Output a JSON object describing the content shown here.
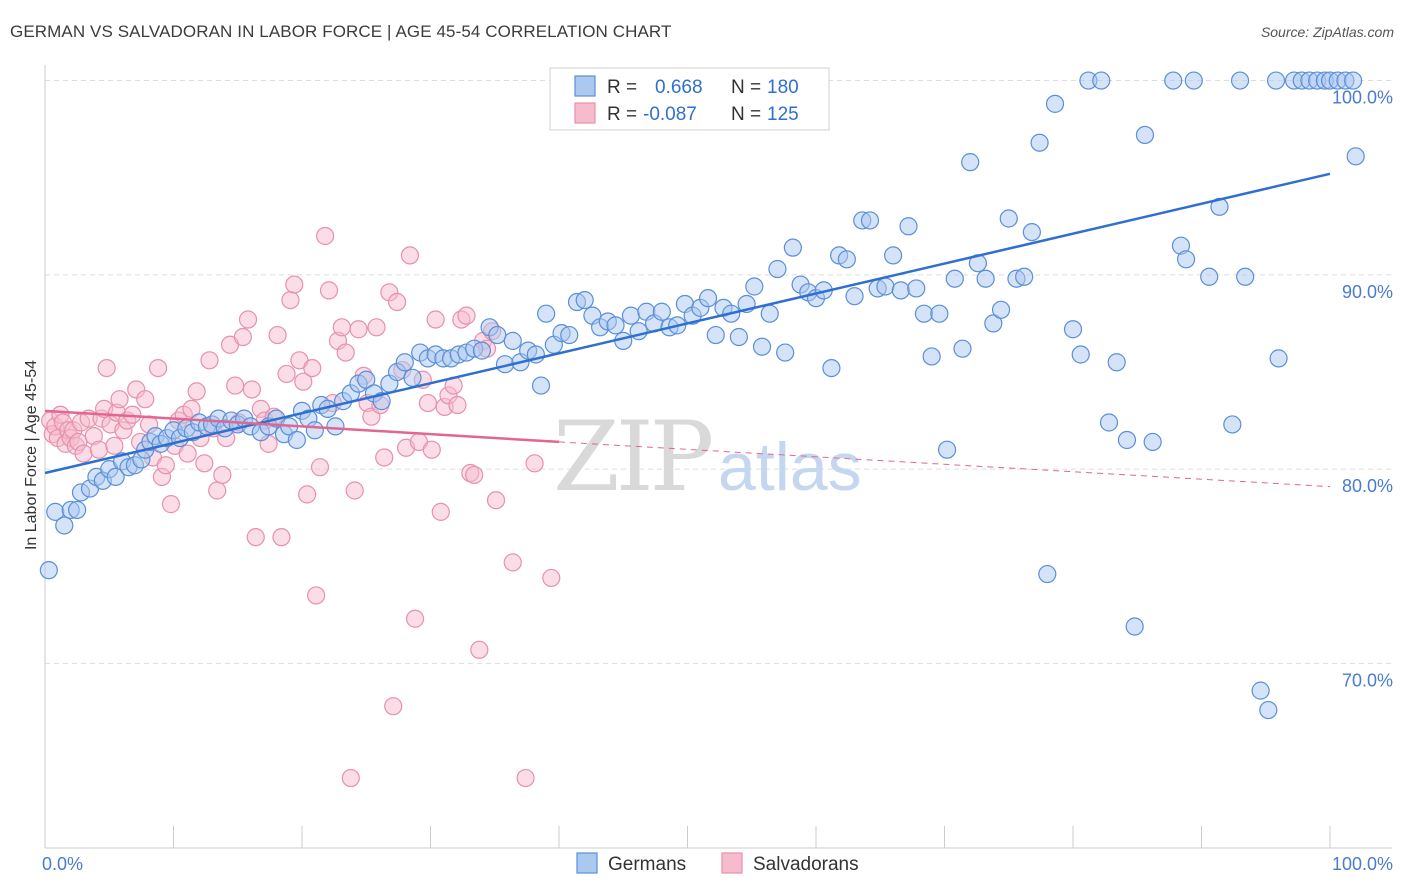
{
  "title": "GERMAN VS SALVADORAN IN LABOR FORCE | AGE 45-54 CORRELATION CHART",
  "source": "Source: ZipAtlas.com",
  "watermark": {
    "zip": "ZIP",
    "atlas": "atlas"
  },
  "legend": {
    "r_label": "R =",
    "n_label": "N =",
    "series": [
      {
        "r": "0.668",
        "n": "180"
      },
      {
        "r": "-0.087",
        "n": "125"
      }
    ]
  },
  "bottom_legend": [
    "Germans",
    "Salvadorans"
  ],
  "chart_data": {
    "type": "scatter",
    "ylabel": "In Labor Force | Age 45-54",
    "x_tick_labels": [
      "0.0%",
      "100.0%"
    ],
    "y_tick_labels": [
      "70.0%",
      "80.0%",
      "90.0%",
      "100.0%"
    ],
    "x_range": [
      0,
      100
    ],
    "y_range": [
      60.5,
      100.8
    ],
    "y_gridlines": [
      70,
      80,
      90,
      100
    ],
    "grid": true,
    "legend_position": "top-center",
    "colors": {
      "germans_fill": "#aac8f0",
      "germans_stroke": "#5b8fd8",
      "germans_line": "#2f6fd0",
      "salvadorans_fill": "#f6bccd",
      "salvadorans_stroke": "#e890ac",
      "salvadorans_line": "#e26690"
    },
    "series": [
      {
        "name": "Germans",
        "trend": {
          "x": [
            0,
            100
          ],
          "y": [
            79.8,
            95.2
          ],
          "dashed_from": null
        },
        "points": [
          [
            0.3,
            74.8
          ],
          [
            0.8,
            77.8
          ],
          [
            1.5,
            77.1
          ],
          [
            2,
            77.9
          ],
          [
            2.5,
            77.9
          ],
          [
            2.8,
            78.8
          ],
          [
            3.5,
            79
          ],
          [
            4,
            79.6
          ],
          [
            4.5,
            79.4
          ],
          [
            5,
            80
          ],
          [
            5.5,
            79.6
          ],
          [
            6,
            80.4
          ],
          [
            6.5,
            80.1
          ],
          [
            7,
            80.2
          ],
          [
            7.5,
            80.5
          ],
          [
            7.8,
            81
          ],
          [
            8.2,
            81.4
          ],
          [
            8.6,
            81.7
          ],
          [
            9,
            81.3
          ],
          [
            9.5,
            81.6
          ],
          [
            10,
            82
          ],
          [
            10.5,
            81.6
          ],
          [
            11,
            82.1
          ],
          [
            11.5,
            81.9
          ],
          [
            12,
            82.4
          ],
          [
            12.6,
            82.2
          ],
          [
            13,
            82.3
          ],
          [
            13.5,
            82.6
          ],
          [
            14,
            82.1
          ],
          [
            14.5,
            82.5
          ],
          [
            15,
            82.3
          ],
          [
            15.5,
            82.6
          ],
          [
            16,
            82.2
          ],
          [
            16.8,
            81.9
          ],
          [
            17.4,
            82.2
          ],
          [
            18,
            82.6
          ],
          [
            18.6,
            81.8
          ],
          [
            19,
            82.2
          ],
          [
            19.6,
            81.5
          ],
          [
            20,
            83
          ],
          [
            20.5,
            82.6
          ],
          [
            21,
            82
          ],
          [
            21.5,
            83.3
          ],
          [
            22,
            83.1
          ],
          [
            22.6,
            82.2
          ],
          [
            23.2,
            83.5
          ],
          [
            23.8,
            83.9
          ],
          [
            24.4,
            84.4
          ],
          [
            25,
            84.6
          ],
          [
            25.6,
            83.9
          ],
          [
            26.2,
            83.5
          ],
          [
            26.8,
            84.4
          ],
          [
            27.4,
            85
          ],
          [
            28,
            85.5
          ],
          [
            28.6,
            84.7
          ],
          [
            29.2,
            86
          ],
          [
            29.8,
            85.7
          ],
          [
            30.4,
            85.9
          ],
          [
            31,
            85.7
          ],
          [
            31.6,
            85.7
          ],
          [
            32.2,
            85.9
          ],
          [
            32.8,
            86
          ],
          [
            33.4,
            86.2
          ],
          [
            34,
            86.1
          ],
          [
            34.6,
            87.3
          ],
          [
            35.2,
            86.9
          ],
          [
            35.8,
            85.4
          ],
          [
            36.4,
            86.6
          ],
          [
            37,
            85.5
          ],
          [
            37.6,
            86.1
          ],
          [
            38.2,
            85.9
          ],
          [
            38.6,
            84.3
          ],
          [
            39,
            88
          ],
          [
            39.6,
            86.4
          ],
          [
            40.2,
            87
          ],
          [
            40.8,
            86.9
          ],
          [
            41.4,
            88.6
          ],
          [
            42,
            88.7
          ],
          [
            42.6,
            87.9
          ],
          [
            43.2,
            87.3
          ],
          [
            43.8,
            87.6
          ],
          [
            44.4,
            87.4
          ],
          [
            45,
            86.6
          ],
          [
            45.6,
            87.9
          ],
          [
            46.2,
            87.1
          ],
          [
            46.8,
            88.1
          ],
          [
            47.4,
            87.5
          ],
          [
            48,
            88.1
          ],
          [
            48.6,
            87.3
          ],
          [
            49.2,
            87.4
          ],
          [
            49.8,
            88.5
          ],
          [
            50.4,
            87.9
          ],
          [
            51,
            88.3
          ],
          [
            51.6,
            88.8
          ],
          [
            52.2,
            86.9
          ],
          [
            52.8,
            88.3
          ],
          [
            53.4,
            88
          ],
          [
            54,
            86.8
          ],
          [
            54.6,
            88.5
          ],
          [
            55.2,
            89.4
          ],
          [
            55.8,
            86.3
          ],
          [
            56.4,
            88
          ],
          [
            57,
            90.3
          ],
          [
            57.6,
            86
          ],
          [
            58.2,
            91.4
          ],
          [
            58.8,
            89.5
          ],
          [
            59.4,
            89.1
          ],
          [
            60,
            88.8
          ],
          [
            60.6,
            89.2
          ],
          [
            61.2,
            85.2
          ],
          [
            61.8,
            91
          ],
          [
            62.4,
            90.8
          ],
          [
            63,
            88.9
          ],
          [
            63.6,
            92.8
          ],
          [
            64.2,
            92.8
          ],
          [
            64.8,
            89.3
          ],
          [
            65.4,
            89.4
          ],
          [
            66,
            91
          ],
          [
            66.6,
            89.2
          ],
          [
            67.2,
            92.5
          ],
          [
            67.8,
            89.3
          ],
          [
            68.4,
            88
          ],
          [
            69,
            85.8
          ],
          [
            69.6,
            88
          ],
          [
            70.2,
            81
          ],
          [
            70.8,
            89.8
          ],
          [
            71.4,
            86.2
          ],
          [
            72,
            95.8
          ],
          [
            72.6,
            90.6
          ],
          [
            73.2,
            89.8
          ],
          [
            73.8,
            87.5
          ],
          [
            74.4,
            88.2
          ],
          [
            75,
            92.9
          ],
          [
            75.6,
            89.8
          ],
          [
            76.2,
            89.9
          ],
          [
            76.8,
            92.2
          ],
          [
            77.4,
            96.8
          ],
          [
            78,
            74.6
          ],
          [
            78.6,
            98.8
          ],
          [
            80,
            87.2
          ],
          [
            80.6,
            85.9
          ],
          [
            81.2,
            100
          ],
          [
            82.2,
            100
          ],
          [
            82.8,
            82.4
          ],
          [
            83.4,
            85.5
          ],
          [
            84.2,
            81.5
          ],
          [
            84.8,
            71.9
          ],
          [
            85.6,
            97.2
          ],
          [
            86.2,
            81.4
          ],
          [
            87.8,
            100
          ],
          [
            88.4,
            91.5
          ],
          [
            88.8,
            90.8
          ],
          [
            89.4,
            100
          ],
          [
            90.6,
            89.9
          ],
          [
            91.4,
            93.5
          ],
          [
            92.4,
            82.3
          ],
          [
            93,
            100
          ],
          [
            93.4,
            89.9
          ],
          [
            94.6,
            68.6
          ],
          [
            95.2,
            67.6
          ],
          [
            95.8,
            100
          ],
          [
            96,
            85.7
          ],
          [
            97.2,
            100
          ],
          [
            97.8,
            100
          ],
          [
            98.4,
            100
          ],
          [
            99,
            100
          ],
          [
            99.6,
            100
          ],
          [
            100,
            100
          ],
          [
            100.6,
            100
          ],
          [
            101.2,
            100
          ],
          [
            101.8,
            100
          ],
          [
            102,
            96.1
          ]
        ]
      },
      {
        "name": "Salvadorans",
        "trend": {
          "x": [
            0,
            40,
            100
          ],
          "y": [
            83,
            81.4,
            79.1
          ],
          "dashed_from": 40
        },
        "points": [
          [
            0.4,
            82.5
          ],
          [
            0.6,
            81.8
          ],
          [
            0.8,
            82.2
          ],
          [
            1,
            81.6
          ],
          [
            1.2,
            82.8
          ],
          [
            1.4,
            82.4
          ],
          [
            1.6,
            81.3
          ],
          [
            1.8,
            82
          ],
          [
            2,
            81.6
          ],
          [
            2.2,
            82
          ],
          [
            2.4,
            81.2
          ],
          [
            2.6,
            81.4
          ],
          [
            2.8,
            82.4
          ],
          [
            3,
            80.8
          ],
          [
            3.4,
            82.6
          ],
          [
            3.8,
            81.7
          ],
          [
            4.2,
            81
          ],
          [
            4.4,
            82.6
          ],
          [
            4.6,
            83.1
          ],
          [
            4.8,
            85.2
          ],
          [
            5.1,
            82.3
          ],
          [
            5.4,
            81.2
          ],
          [
            5.6,
            82.9
          ],
          [
            5.8,
            83.6
          ],
          [
            6.1,
            82
          ],
          [
            6.4,
            82.5
          ],
          [
            6.8,
            82.8
          ],
          [
            7.1,
            84.1
          ],
          [
            7.4,
            81.4
          ],
          [
            7.8,
            83.6
          ],
          [
            8.1,
            82.3
          ],
          [
            8.4,
            80.6
          ],
          [
            8.8,
            85.2
          ],
          [
            9.1,
            79.6
          ],
          [
            9.4,
            80.2
          ],
          [
            9.8,
            78.2
          ],
          [
            10.1,
            81.2
          ],
          [
            10.4,
            82.5
          ],
          [
            10.8,
            82.8
          ],
          [
            11.1,
            80.8
          ],
          [
            11.4,
            83.1
          ],
          [
            11.8,
            84
          ],
          [
            12.1,
            81.6
          ],
          [
            12.4,
            80.3
          ],
          [
            12.8,
            85.6
          ],
          [
            13.1,
            82.1
          ],
          [
            13.4,
            78.9
          ],
          [
            13.8,
            79.7
          ],
          [
            14.1,
            81.6
          ],
          [
            14.4,
            86.4
          ],
          [
            14.8,
            84.3
          ],
          [
            15.1,
            82.4
          ],
          [
            15.4,
            86.8
          ],
          [
            15.8,
            87.7
          ],
          [
            16.1,
            84.1
          ],
          [
            16.4,
            76.5
          ],
          [
            16.8,
            83.1
          ],
          [
            17.1,
            82.5
          ],
          [
            17.4,
            81.3
          ],
          [
            17.8,
            82.7
          ],
          [
            18.1,
            86.9
          ],
          [
            18.4,
            76.5
          ],
          [
            18.8,
            84.9
          ],
          [
            19.1,
            88.7
          ],
          [
            19.4,
            89.5
          ],
          [
            19.8,
            85.6
          ],
          [
            20.1,
            84.5
          ],
          [
            20.4,
            78.7
          ],
          [
            20.8,
            85.2
          ],
          [
            21.1,
            73.5
          ],
          [
            21.4,
            80.1
          ],
          [
            21.8,
            92
          ],
          [
            22.1,
            89.2
          ],
          [
            22.4,
            83.4
          ],
          [
            22.8,
            86.6
          ],
          [
            23.1,
            87.3
          ],
          [
            23.4,
            86
          ],
          [
            23.8,
            64.1
          ],
          [
            24.1,
            78.9
          ],
          [
            24.4,
            87.2
          ],
          [
            24.8,
            84.8
          ],
          [
            25.1,
            83.4
          ],
          [
            25.4,
            82.7
          ],
          [
            25.8,
            87.3
          ],
          [
            26.1,
            83.3
          ],
          [
            26.4,
            80.6
          ],
          [
            26.8,
            89.1
          ],
          [
            27.1,
            67.8
          ],
          [
            27.4,
            88.6
          ],
          [
            27.8,
            85.1
          ],
          [
            28.1,
            81.1
          ],
          [
            28.4,
            91
          ],
          [
            28.8,
            72.3
          ],
          [
            29.1,
            81.4
          ],
          [
            29.4,
            84.6
          ],
          [
            29.8,
            83.4
          ],
          [
            30.1,
            81
          ],
          [
            30.4,
            87.7
          ],
          [
            30.8,
            77.8
          ],
          [
            31.1,
            83.2
          ],
          [
            31.4,
            83.8
          ],
          [
            31.8,
            84.3
          ],
          [
            32.1,
            83.3
          ],
          [
            32.4,
            87.7
          ],
          [
            32.8,
            87.9
          ],
          [
            33.1,
            79.8
          ],
          [
            33.4,
            79.7
          ],
          [
            33.8,
            70.7
          ],
          [
            34.1,
            86.6
          ],
          [
            34.4,
            86.2
          ],
          [
            34.8,
            87.1
          ],
          [
            35.1,
            78.4
          ],
          [
            36.4,
            75.2
          ],
          [
            37.4,
            64.1
          ],
          [
            38.1,
            80.3
          ],
          [
            39.4,
            74.4
          ]
        ]
      }
    ]
  }
}
